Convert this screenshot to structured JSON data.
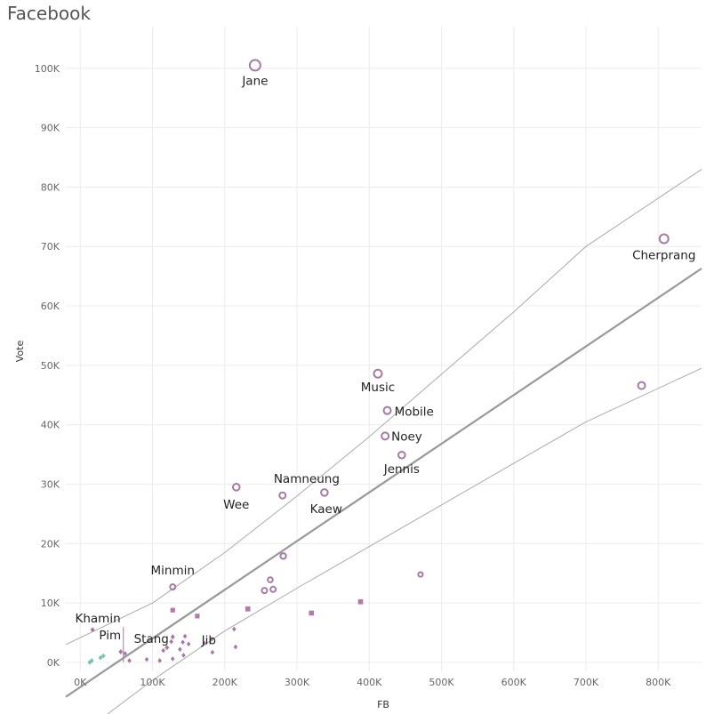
{
  "chart_data": {
    "type": "scatter",
    "title": "Facebook",
    "xlabel": "FB",
    "ylabel": "Vote",
    "xlim": [
      -20000,
      860000
    ],
    "ylim": [
      -1500,
      107000
    ],
    "x_ticks": [
      {
        "value": 0,
        "label": "0K"
      },
      {
        "value": 100000,
        "label": "100K"
      },
      {
        "value": 200000,
        "label": "200K"
      },
      {
        "value": 300000,
        "label": "300K"
      },
      {
        "value": 400000,
        "label": "400K"
      },
      {
        "value": 500000,
        "label": "500K"
      },
      {
        "value": 600000,
        "label": "600K"
      },
      {
        "value": 700000,
        "label": "700K"
      },
      {
        "value": 800000,
        "label": "800K"
      }
    ],
    "y_ticks": [
      {
        "value": 0,
        "label": "0K"
      },
      {
        "value": 10000,
        "label": "10K"
      },
      {
        "value": 20000,
        "label": "20K"
      },
      {
        "value": 30000,
        "label": "30K"
      },
      {
        "value": 40000,
        "label": "40K"
      },
      {
        "value": 50000,
        "label": "50K"
      },
      {
        "value": 60000,
        "label": "60K"
      },
      {
        "value": 70000,
        "label": "70K"
      },
      {
        "value": 80000,
        "label": "80K"
      },
      {
        "value": 90000,
        "label": "90K"
      },
      {
        "value": 100000,
        "label": "100K"
      }
    ],
    "grid": true,
    "colors": {
      "circle": "#a77aa5",
      "square": "#b07aaa",
      "diamond": "#a77aa5",
      "teal": "#6ec2b0",
      "trend": "#999999",
      "band": "#aaaaaa",
      "grid": "#ececec"
    },
    "trend_line": [
      [
        -20000,
        -5800
      ],
      [
        860000,
        66300
      ]
    ],
    "confidence_upper": [
      [
        -20000,
        3000
      ],
      [
        100000,
        10000
      ],
      [
        200000,
        18500
      ],
      [
        300000,
        28000
      ],
      [
        400000,
        38000
      ],
      [
        500000,
        48500
      ],
      [
        600000,
        59000
      ],
      [
        700000,
        70000
      ],
      [
        860000,
        83000
      ]
    ],
    "confidence_lower": [
      [
        -20000,
        -14000
      ],
      [
        100000,
        -3000
      ],
      [
        200000,
        5300
      ],
      [
        300000,
        12500
      ],
      [
        400000,
        19500
      ],
      [
        500000,
        26500
      ],
      [
        600000,
        33500
      ],
      [
        700000,
        40500
      ],
      [
        860000,
        49500
      ]
    ],
    "labeled_points": [
      {
        "name": "Jane",
        "x": 242000,
        "y": 100500,
        "shape": "circle",
        "size": 6
      },
      {
        "name": "Cherprang",
        "x": 808000,
        "y": 71300,
        "shape": "circle",
        "size": 5
      },
      {
        "name": "Music",
        "x": 412000,
        "y": 48600,
        "shape": "circle",
        "size": 4.5
      },
      {
        "name": "Mobile",
        "x": 425000,
        "y": 42400,
        "shape": "circle",
        "size": 4
      },
      {
        "name": "Noey",
        "x": 422000,
        "y": 38100,
        "shape": "circle",
        "size": 4
      },
      {
        "name": "Jennis",
        "x": 445000,
        "y": 34900,
        "shape": "circle",
        "size": 3.8
      },
      {
        "name": "Namneung",
        "x": 338000,
        "y": 28600,
        "shape": "circle",
        "size": 3.8
      },
      {
        "name": "Wee",
        "x": 216000,
        "y": 29500,
        "shape": "circle",
        "size": 3.8
      },
      {
        "name": "Kaew",
        "x": 280000,
        "y": 28100,
        "shape": "circle",
        "size": 3.5
      },
      {
        "name": "Minmin",
        "x": 128000,
        "y": 12700,
        "shape": "circle",
        "size": 3
      },
      {
        "name": "Khamin",
        "x": 17000,
        "y": 5500,
        "shape": "diamond",
        "size": 2.5
      },
      {
        "name": "Stang",
        "x": 128000,
        "y": 4300,
        "shape": "diamond",
        "size": 2.5
      },
      {
        "name": "Pim",
        "x": 56000,
        "y": 1800,
        "shape": "diamond",
        "size": 2.5
      },
      {
        "name": "Jib",
        "x": 120000,
        "y": 2500,
        "shape": "diamond",
        "size": 2.5
      }
    ],
    "points": [
      {
        "x": 777000,
        "y": 46600,
        "shape": "circle",
        "size": 4
      },
      {
        "x": 281000,
        "y": 17900,
        "shape": "circle",
        "size": 3.2
      },
      {
        "x": 471000,
        "y": 14800,
        "shape": "circle",
        "size": 2.6
      },
      {
        "x": 263000,
        "y": 13900,
        "shape": "circle",
        "size": 2.8
      },
      {
        "x": 255000,
        "y": 12100,
        "shape": "circle",
        "size": 3
      },
      {
        "x": 267000,
        "y": 12300,
        "shape": "circle",
        "size": 3
      },
      {
        "x": 388000,
        "y": 10200,
        "shape": "square",
        "size": 2.8
      },
      {
        "x": 320000,
        "y": 8300,
        "shape": "square",
        "size": 2.8
      },
      {
        "x": 232000,
        "y": 9000,
        "shape": "square",
        "size": 2.8
      },
      {
        "x": 128000,
        "y": 8800,
        "shape": "square",
        "size": 2.6
      },
      {
        "x": 162000,
        "y": 7800,
        "shape": "square",
        "size": 2.6
      },
      {
        "x": 213000,
        "y": 5600,
        "shape": "diamond",
        "size": 2.3
      },
      {
        "x": 182000,
        "y": 3900,
        "shape": "diamond",
        "size": 2.3
      },
      {
        "x": 145000,
        "y": 4400,
        "shape": "diamond",
        "size": 2.3
      },
      {
        "x": 150000,
        "y": 3100,
        "shape": "diamond",
        "size": 2.3
      },
      {
        "x": 142000,
        "y": 3400,
        "shape": "diamond",
        "size": 2.3
      },
      {
        "x": 172000,
        "y": 3200,
        "shape": "diamond",
        "size": 2.3
      },
      {
        "x": 215000,
        "y": 2600,
        "shape": "diamond",
        "size": 2.3
      },
      {
        "x": 138000,
        "y": 2200,
        "shape": "diamond",
        "size": 2.3
      },
      {
        "x": 115000,
        "y": 2000,
        "shape": "diamond",
        "size": 2.3
      },
      {
        "x": 183000,
        "y": 1700,
        "shape": "diamond",
        "size": 2.3
      },
      {
        "x": 143000,
        "y": 1200,
        "shape": "diamond",
        "size": 2.3
      },
      {
        "x": 128000,
        "y": 600,
        "shape": "diamond",
        "size": 2.3
      },
      {
        "x": 110000,
        "y": 300,
        "shape": "diamond",
        "size": 2.3
      },
      {
        "x": 92000,
        "y": 500,
        "shape": "diamond",
        "size": 2.3
      },
      {
        "x": 68000,
        "y": 300,
        "shape": "diamond",
        "size": 2.3
      },
      {
        "x": 62000,
        "y": 1500,
        "shape": "diamond",
        "size": 2.3
      },
      {
        "x": 126000,
        "y": 3500,
        "shape": "diamond",
        "size": 2.3
      },
      {
        "x": 32000,
        "y": 1100,
        "shape": "diamond",
        "size": 2.3,
        "color": "teal"
      },
      {
        "x": 16000,
        "y": 300,
        "shape": "diamond",
        "size": 2.3,
        "color": "teal"
      },
      {
        "x": 13000,
        "y": 0,
        "shape": "diamond",
        "size": 2.3,
        "color": "teal"
      },
      {
        "x": 28000,
        "y": 800,
        "shape": "diamond",
        "size": 2.3,
        "color": "teal"
      }
    ]
  }
}
